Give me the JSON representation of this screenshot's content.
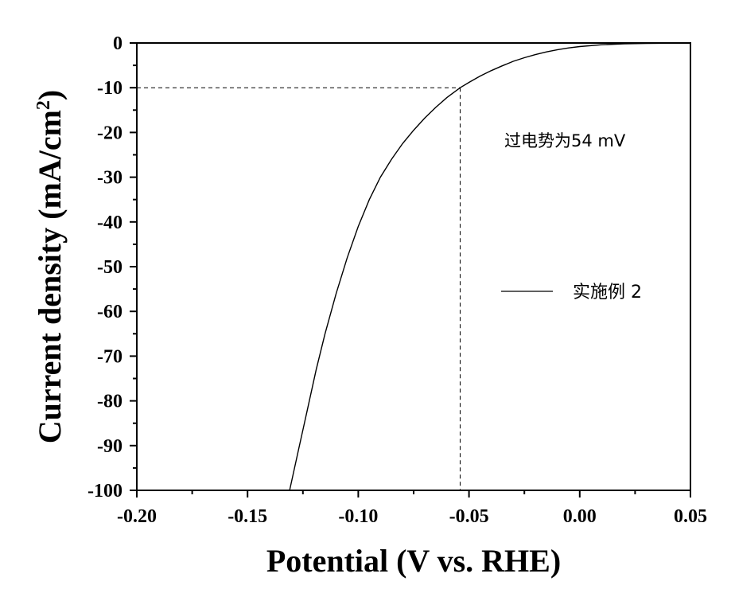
{
  "chart_data": {
    "type": "line",
    "xlabel": "Potential (V vs. RHE)",
    "ylabel_main": "Current density (mA/cm",
    "ylabel_sup": "2",
    "ylabel_close": ")",
    "xlim": [
      -0.2,
      0.05
    ],
    "ylim": [
      -100,
      0
    ],
    "x_ticks": [
      -0.2,
      -0.15,
      -0.1,
      -0.05,
      0.0,
      0.05
    ],
    "x_tick_labels": [
      "-0.20",
      "-0.15",
      "-0.10",
      "-0.05",
      "0.00",
      "0.05"
    ],
    "y_ticks": [
      0,
      -10,
      -20,
      -30,
      -40,
      -50,
      -60,
      -70,
      -80,
      -90,
      -100
    ],
    "y_tick_labels": [
      "0",
      "-10",
      "-20",
      "-30",
      "-40",
      "-50",
      "-60",
      "-70",
      "-80",
      "-90",
      "-100"
    ],
    "grid": false,
    "series": [
      {
        "name": "实施例 2",
        "x": [
          -0.131,
          -0.127,
          -0.123,
          -0.119,
          -0.115,
          -0.11,
          -0.105,
          -0.1,
          -0.095,
          -0.09,
          -0.085,
          -0.08,
          -0.075,
          -0.07,
          -0.065,
          -0.06,
          -0.054,
          -0.05,
          -0.045,
          -0.04,
          -0.035,
          -0.03,
          -0.025,
          -0.02,
          -0.015,
          -0.01,
          -0.005,
          0.0,
          0.01,
          0.02,
          0.03,
          0.04,
          0.05
        ],
        "y": [
          -100,
          -91,
          -82,
          -73,
          -65,
          -56,
          -48,
          -41,
          -35,
          -30,
          -26,
          -22.5,
          -19.5,
          -16.8,
          -14.4,
          -12.2,
          -10,
          -8.8,
          -7.4,
          -6.2,
          -5.1,
          -4.1,
          -3.3,
          -2.6,
          -2.0,
          -1.5,
          -1.1,
          -0.8,
          -0.4,
          -0.2,
          -0.1,
          -0.05,
          0
        ]
      }
    ],
    "reference_point": {
      "x": -0.054,
      "y": -10
    },
    "annotation": "过电势为54 mV",
    "legend_position": "center-right"
  }
}
